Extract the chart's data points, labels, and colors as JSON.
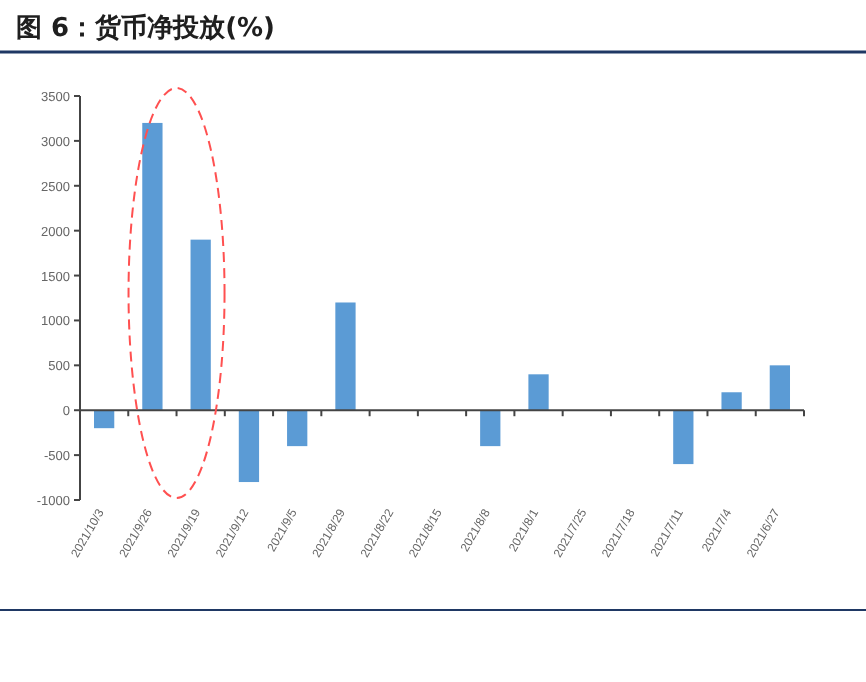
{
  "chart_data": {
    "type": "bar",
    "title": "图 6：货币净投放(%)",
    "categories": [
      "2021/10/3",
      "2021/9/26",
      "2021/9/19",
      "2021/9/12",
      "2021/9/5",
      "2021/8/29",
      "2021/8/22",
      "2021/8/15",
      "2021/8/8",
      "2021/8/1",
      "2021/7/25",
      "2021/7/18",
      "2021/7/11",
      "2021/7/4",
      "2021/6/27"
    ],
    "values": [
      -200,
      3200,
      1900,
      -800,
      -400,
      1200,
      0,
      0,
      -400,
      400,
      0,
      0,
      -600,
      200,
      500
    ],
    "color": "#5b9bd5",
    "ylim": [
      -1000,
      3500
    ],
    "yticks": [
      -1000,
      -500,
      0,
      500,
      1000,
      1500,
      2000,
      2500,
      3000,
      3500
    ]
  }
}
